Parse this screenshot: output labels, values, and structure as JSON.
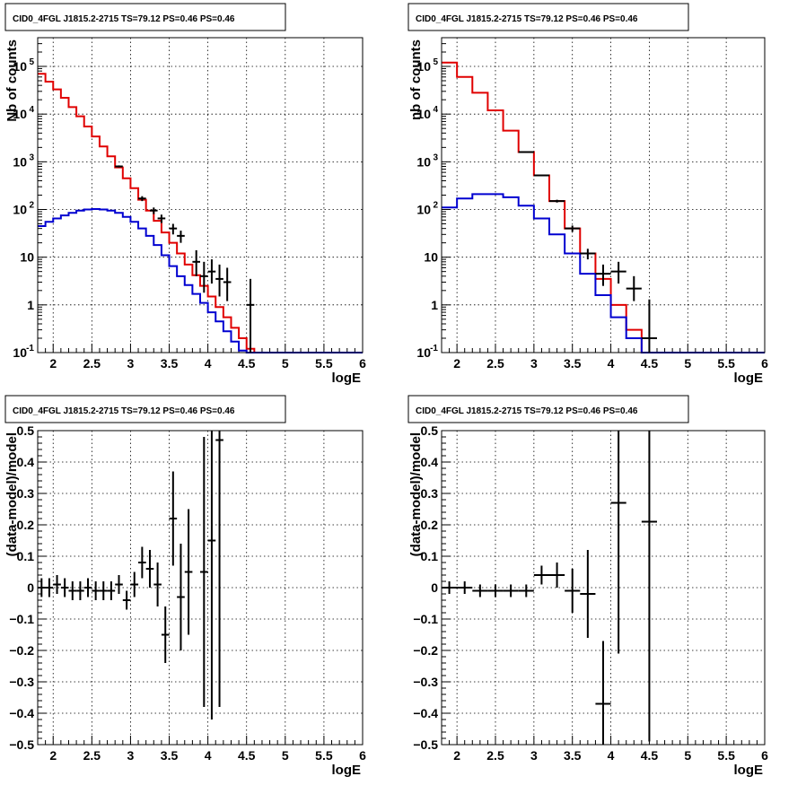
{
  "chart_data": [
    {
      "type": "line",
      "title": "CID0_4FGL J1815.2-2715 TS=79.12 PS=0.46 PS=0.46",
      "xlabel": "logE",
      "ylabel": "Nb of counts",
      "yscale": "log",
      "xlim": [
        1.8,
        6
      ],
      "ylim": [
        0.1,
        400000
      ],
      "grid": true,
      "x_tick_labels": [
        "2",
        "2.5",
        "3",
        "3.5",
        "4",
        "4.5",
        "5",
        "5.5",
        "6"
      ],
      "y_tick_labels": [
        "10^-1",
        "1",
        "10",
        "10^2",
        "10^3",
        "10^4",
        "10^5"
      ],
      "colors": {
        "total": "#e00000",
        "source": "#0000d0",
        "data": "#000000"
      },
      "series": [
        {
          "role": "total",
          "edges": [
            1.8,
            1.9,
            2.0,
            2.1,
            2.2,
            2.3,
            2.4,
            2.5,
            2.6,
            2.7,
            2.8,
            2.9,
            3.0,
            3.1,
            3.2,
            3.3,
            3.4,
            3.5,
            3.6,
            3.7,
            3.8,
            3.9,
            4.0,
            4.1,
            4.2,
            4.3,
            4.4,
            4.5,
            4.6,
            4.7,
            4.8,
            4.9,
            5.0,
            5.1,
            5.2,
            5.3,
            5.4,
            5.5,
            5.6,
            5.7,
            5.8,
            5.9,
            6.0
          ],
          "values": [
            70000,
            48000,
            33000,
            22000,
            14000,
            9000,
            5500,
            3400,
            2100,
            1300,
            760,
            450,
            280,
            160,
            95,
            58,
            33,
            20,
            12,
            7,
            4.2,
            2.5,
            1.5,
            0.9,
            0.55,
            0.33,
            0.2,
            0.12,
            0.1,
            0.1,
            0.1,
            0.1,
            0.1,
            0.1,
            0.1,
            0.1,
            0.1,
            0.1,
            0.1,
            0.1,
            0.1,
            0.1
          ]
        },
        {
          "role": "source",
          "edges": [
            1.8,
            1.9,
            2.0,
            2.1,
            2.2,
            2.3,
            2.4,
            2.5,
            2.6,
            2.7,
            2.8,
            2.9,
            3.0,
            3.1,
            3.2,
            3.3,
            3.4,
            3.5,
            3.6,
            3.7,
            3.8,
            3.9,
            4.0,
            4.1,
            4.2,
            4.3,
            4.4,
            4.5,
            4.6,
            4.7,
            4.8,
            4.9,
            5.0,
            5.1,
            5.2,
            5.3,
            5.4,
            5.5,
            5.6,
            5.7,
            5.8,
            5.9,
            6.0
          ],
          "values": [
            45,
            55,
            65,
            75,
            85,
            95,
            100,
            102,
            100,
            95,
            85,
            70,
            55,
            40,
            28,
            18,
            11,
            6.5,
            4,
            2.6,
            1.7,
            1.1,
            0.7,
            0.45,
            0.28,
            0.17,
            0.11,
            0.1,
            0.1,
            0.1,
            0.1,
            0.1,
            0.1,
            0.1,
            0.1,
            0.1,
            0.1,
            0.1,
            0.1,
            0.1,
            0.1,
            0.1
          ]
        },
        {
          "role": "data",
          "x": [
            2.85,
            3.15,
            3.3,
            3.4,
            3.55,
            3.65,
            3.85,
            3.95,
            4.05,
            4.15,
            4.25,
            4.55
          ],
          "xerr": 0.05,
          "values": [
            800,
            170,
            95,
            65,
            40,
            28,
            8,
            4,
            5,
            3.5,
            3,
            1
          ],
          "yerr_low": [
            760,
            150,
            80,
            52,
            30,
            20,
            4,
            1.8,
            2.8,
            1.5,
            1.2,
            0.1
          ],
          "yerr_high": [
            840,
            190,
            110,
            78,
            50,
            36,
            14,
            8,
            9,
            7,
            6,
            3.5
          ]
        }
      ]
    },
    {
      "type": "line",
      "title": "CID0_4FGL J1815.2-2715 TS=79.12 PS=0.46 PS=0.46",
      "xlabel": "logE",
      "ylabel": "nb of counts",
      "yscale": "log",
      "xlim": [
        1.8,
        6
      ],
      "ylim": [
        0.1,
        400000
      ],
      "grid": true,
      "x_tick_labels": [
        "2",
        "2.5",
        "3",
        "3.5",
        "4",
        "4.5",
        "5",
        "5.5",
        "6"
      ],
      "y_tick_labels": [
        "10^-1",
        "1",
        "10",
        "10^2",
        "10^3",
        "10^4",
        "10^5"
      ],
      "colors": {
        "total": "#e00000",
        "source": "#0000d0",
        "data": "#000000"
      },
      "series": [
        {
          "role": "total",
          "edges": [
            1.8,
            2.0,
            2.2,
            2.4,
            2.6,
            2.8,
            3.0,
            3.2,
            3.4,
            3.6,
            3.8,
            4.0,
            4.2,
            4.4,
            4.6,
            4.8,
            5.0,
            5.2,
            5.4,
            5.6,
            5.8,
            6.0
          ],
          "values": [
            120000,
            60000,
            28000,
            12000,
            4500,
            1600,
            520,
            150,
            40,
            12,
            3.5,
            1,
            0.3,
            0.1,
            0.1,
            0.1,
            0.1,
            0.1,
            0.1,
            0.1,
            0.1
          ]
        },
        {
          "role": "source",
          "edges": [
            1.8,
            2.0,
            2.2,
            2.4,
            2.6,
            2.8,
            3.0,
            3.2,
            3.4,
            3.6,
            3.8,
            4.0,
            4.2,
            4.4,
            4.6,
            4.8,
            5.0,
            5.2,
            5.4,
            5.6,
            5.8,
            6.0
          ],
          "values": [
            110,
            170,
            210,
            210,
            180,
            120,
            65,
            30,
            12,
            4.5,
            1.6,
            0.55,
            0.2,
            0.1,
            0.1,
            0.1,
            0.1,
            0.1,
            0.1,
            0.1,
            0.1
          ]
        },
        {
          "role": "data",
          "x": [
            2.9,
            3.1,
            3.3,
            3.5,
            3.7,
            3.9,
            4.1,
            4.3,
            4.5
          ],
          "xerr": 0.1,
          "values": [
            1600,
            520,
            150,
            40,
            12,
            4.5,
            5,
            2.2,
            0.2
          ],
          "yerr_low": [
            1550,
            500,
            140,
            34,
            9,
            2.5,
            2.8,
            1.2,
            0.1
          ],
          "yerr_high": [
            1650,
            540,
            160,
            46,
            15,
            7,
            8,
            4,
            1.3
          ]
        }
      ]
    },
    {
      "type": "scatter",
      "title": "CID0_4FGL J1815.2-2715 TS=79.12 PS=0.46 PS=0.46",
      "xlabel": "logE",
      "ylabel": "(data-model)/model",
      "xlim": [
        1.8,
        6
      ],
      "ylim": [
        -0.5,
        0.5
      ],
      "grid": true,
      "x_tick_labels": [
        "2",
        "2.5",
        "3",
        "3.5",
        "4",
        "4.5",
        "5",
        "5.5",
        "6"
      ],
      "y_tick_labels": [
        "-0.5",
        "-0.4",
        "-0.3",
        "-0.2",
        "-0.1",
        "0",
        "0.1",
        "0.2",
        "0.3",
        "0.4",
        "0.5"
      ],
      "colors": {
        "data": "#000000"
      },
      "series": [
        {
          "role": "data",
          "x": [
            1.85,
            1.95,
            2.05,
            2.15,
            2.25,
            2.35,
            2.45,
            2.55,
            2.65,
            2.75,
            2.85,
            2.95,
            3.05,
            3.15,
            3.25,
            3.35,
            3.45,
            3.55,
            3.65,
            3.75,
            3.95,
            4.05,
            4.15
          ],
          "xerr": 0.05,
          "values": [
            0.0,
            0.0,
            0.01,
            0.0,
            -0.01,
            -0.01,
            0.0,
            -0.01,
            -0.01,
            -0.01,
            0.01,
            -0.04,
            0.01,
            0.08,
            0.06,
            0.01,
            -0.15,
            0.22,
            -0.03,
            0.05,
            0.05,
            0.15,
            0.47
          ],
          "yerr": [
            0.03,
            0.03,
            0.03,
            0.03,
            0.03,
            0.03,
            0.03,
            0.03,
            0.03,
            0.03,
            0.03,
            0.03,
            0.04,
            0.05,
            0.06,
            0.07,
            0.09,
            0.15,
            0.17,
            0.2,
            0.43,
            0.57,
            0.85
          ]
        }
      ]
    },
    {
      "type": "scatter",
      "title": "CID0_4FGL J1815.2-2715 TS=79.12 PS=0.46 PS=0.46",
      "xlabel": "logE",
      "ylabel": "(data-model)/model",
      "xlim": [
        1.8,
        6
      ],
      "ylim": [
        -0.5,
        0.5
      ],
      "grid": true,
      "x_tick_labels": [
        "2",
        "2.5",
        "3",
        "3.5",
        "4",
        "4.5",
        "5",
        "5.5",
        "6"
      ],
      "y_tick_labels": [
        "-0.5",
        "-0.4",
        "-0.3",
        "-0.2",
        "-0.1",
        "0",
        "0.1",
        "0.2",
        "0.3",
        "0.4",
        "0.5"
      ],
      "colors": {
        "data": "#000000"
      },
      "series": [
        {
          "role": "data",
          "x": [
            1.9,
            2.1,
            2.3,
            2.5,
            2.7,
            2.9,
            3.1,
            3.3,
            3.5,
            3.7,
            3.9,
            4.1,
            4.5
          ],
          "xerr": 0.1,
          "values": [
            0.0,
            0.0,
            -0.01,
            -0.01,
            -0.01,
            -0.01,
            0.04,
            0.04,
            -0.01,
            -0.02,
            -0.37,
            0.27,
            0.21
          ],
          "yerr": [
            0.02,
            0.02,
            0.02,
            0.02,
            0.02,
            0.02,
            0.03,
            0.04,
            0.07,
            0.14,
            0.2,
            0.48,
            0.7
          ]
        }
      ]
    }
  ]
}
